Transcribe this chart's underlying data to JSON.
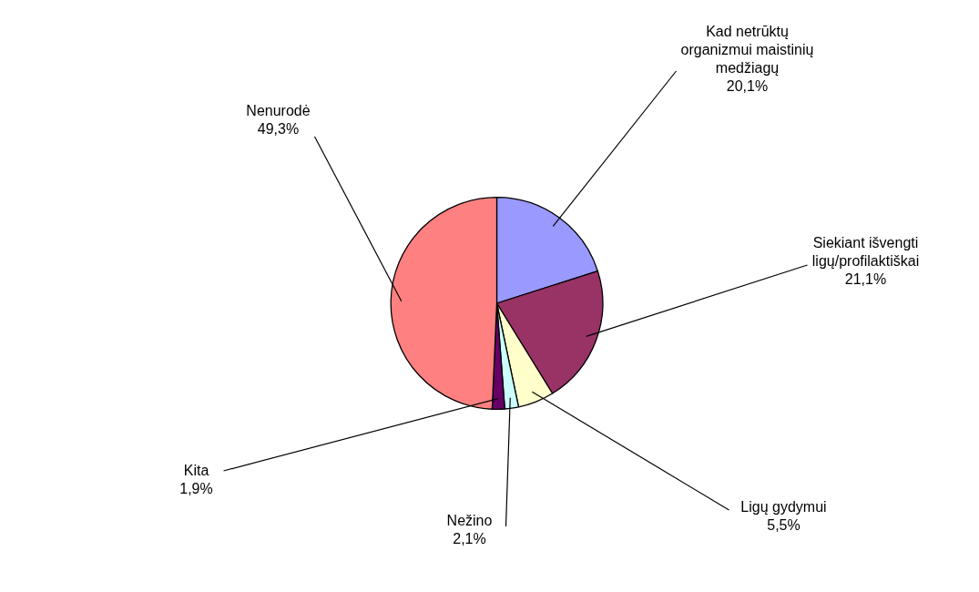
{
  "chart_data": {
    "type": "pie",
    "categories": [
      "Kad netrūktų organizmui maistinių medžiagų",
      "Siekiant išvengti ligų/profilaktiškai",
      "Ligų gydymui",
      "Nežino",
      "Kita",
      "Nenurodė"
    ],
    "values": [
      20.1,
      21.1,
      5.5,
      2.1,
      1.9,
      49.3
    ],
    "value_labels": [
      "20,1%",
      "21,1%",
      "5,5%",
      "2,1%",
      "1,9%",
      "49,3%"
    ],
    "colors": [
      "#9999ff",
      "#993366",
      "#ffffcc",
      "#ccffff",
      "#660066",
      "#ff8080"
    ],
    "legend": false
  }
}
